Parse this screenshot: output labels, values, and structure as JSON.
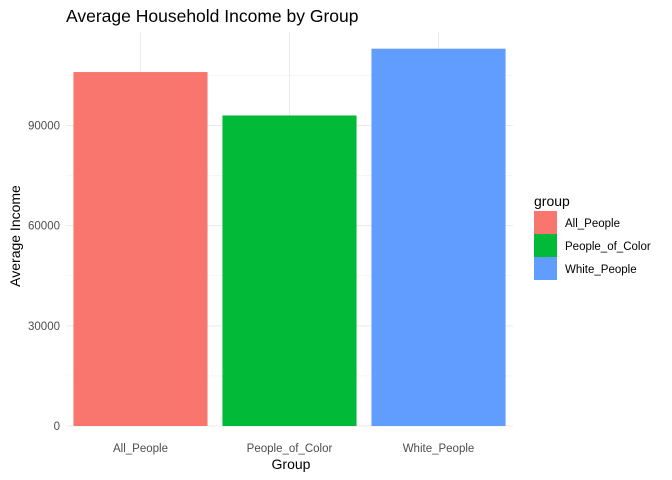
{
  "chart_data": {
    "type": "bar",
    "title": "Average Household Income by Group",
    "xlabel": "Group",
    "ylabel": "Average Income",
    "categories": [
      "All_People",
      "People_of_Color",
      "White_People"
    ],
    "values": [
      106000,
      93000,
      113000
    ],
    "colors": [
      "#F8766D",
      "#00BA38",
      "#619CFF"
    ],
    "ylim": [
      0,
      118000
    ],
    "yticks": [
      0,
      30000,
      60000,
      90000
    ],
    "yticks_minor": [
      15000,
      45000,
      75000,
      105000
    ],
    "grid": true,
    "legend": {
      "title": "group",
      "position": "right",
      "entries": [
        "All_People",
        "People_of_Color",
        "White_People"
      ]
    }
  }
}
